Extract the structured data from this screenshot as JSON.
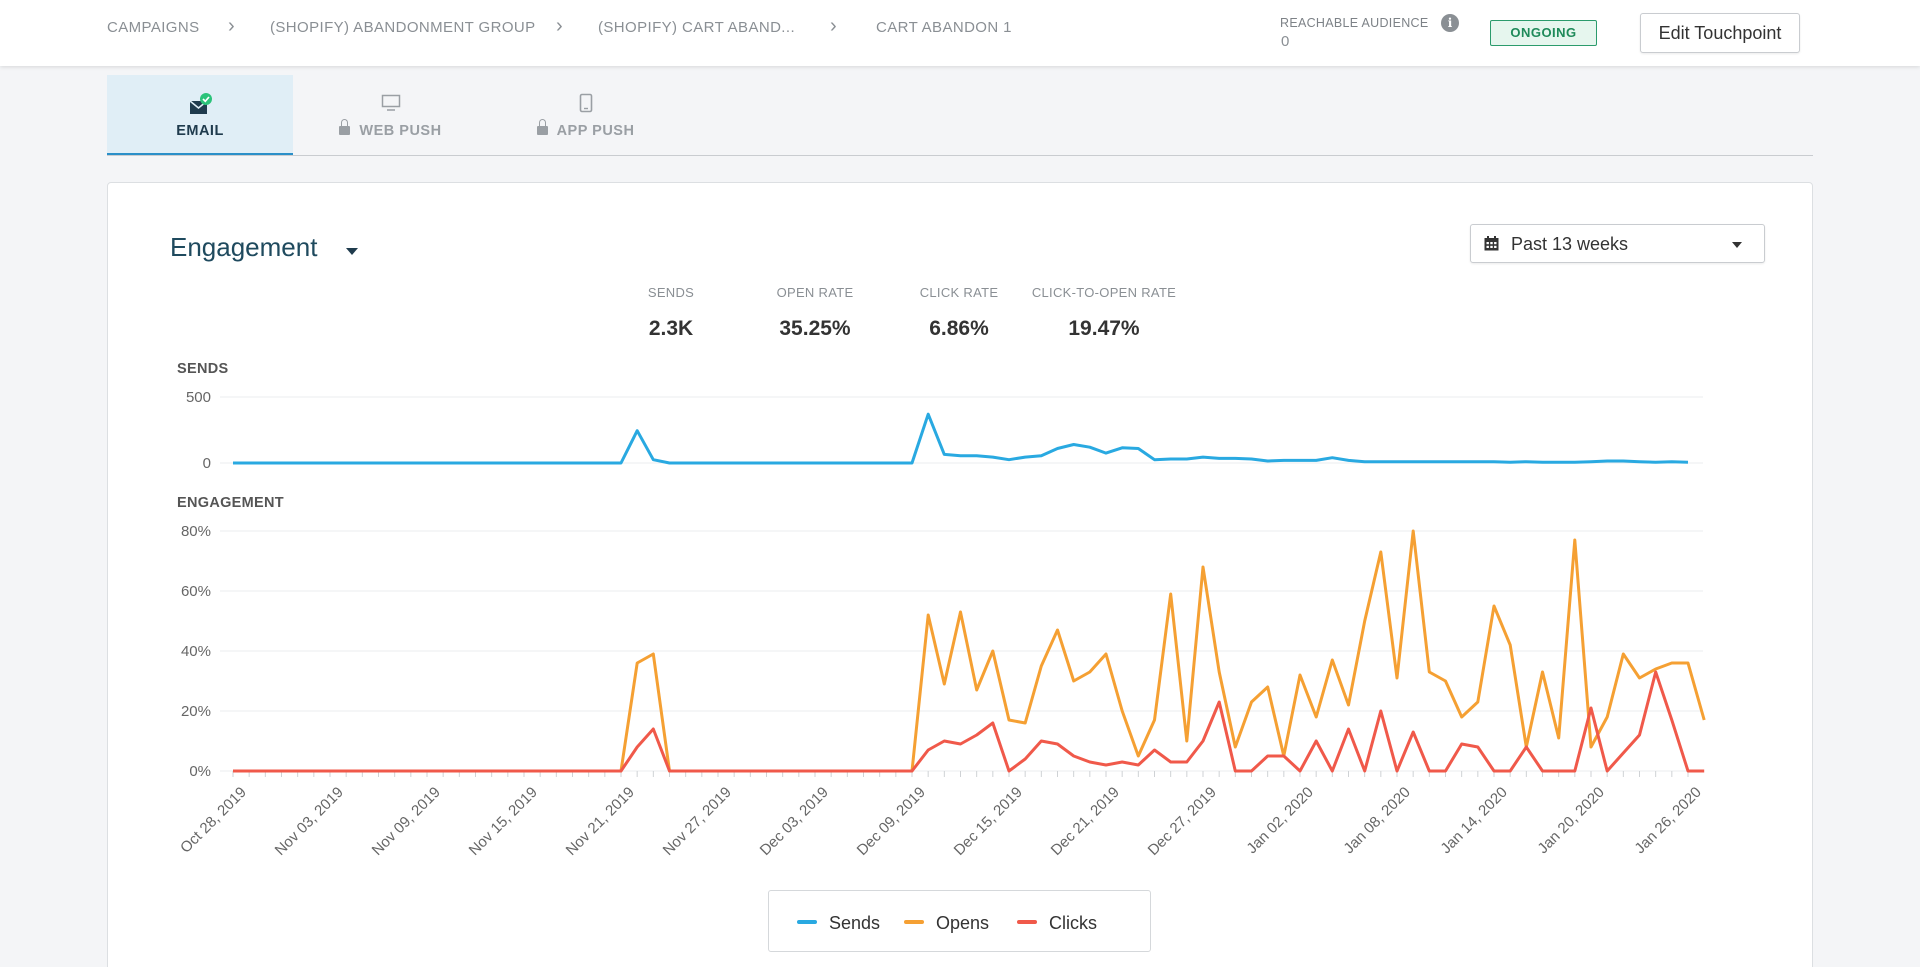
{
  "breadcrumb": {
    "items": [
      "CAMPAIGNS",
      "(SHOPIFY) ABANDONMENT GROUP",
      "(SHOPIFY) CART ABAND...",
      "CART ABANDON 1"
    ]
  },
  "header": {
    "reachable_audience_label": "REACHABLE AUDIENCE",
    "reachable_audience_value": "0",
    "status": "ONGOING",
    "edit_button": "Edit Touchpoint"
  },
  "tabs": [
    {
      "label": "EMAIL",
      "active": true,
      "locked": false,
      "icon": "email-check-icon"
    },
    {
      "label": "WEB PUSH",
      "active": false,
      "locked": true,
      "icon": "monitor-icon"
    },
    {
      "label": "APP PUSH",
      "active": false,
      "locked": true,
      "icon": "phone-icon"
    }
  ],
  "engagement": {
    "title": "Engagement",
    "range": "Past 13 weeks",
    "metrics": [
      {
        "label": "SENDS",
        "value": "2.3K"
      },
      {
        "label": "OPEN RATE",
        "value": "35.25%"
      },
      {
        "label": "CLICK RATE",
        "value": "6.86%"
      },
      {
        "label": "CLICK-TO-OPEN RATE",
        "value": "19.47%"
      }
    ],
    "sends_label": "SENDS",
    "engagement_label": "ENGAGEMENT"
  },
  "legend": {
    "items": [
      {
        "label": "Sends",
        "color": "#29a9e1"
      },
      {
        "label": "Opens",
        "color": "#f5a033"
      },
      {
        "label": "Clicks",
        "color": "#f0594a"
      }
    ]
  },
  "colors": {
    "sends": "#29a9e1",
    "opens": "#f5a033",
    "clicks": "#f0594a",
    "accent": "#2a8fc8",
    "status": "#2b9b6c"
  },
  "chart_data": [
    {
      "type": "line",
      "title": "SENDS",
      "ylim": [
        0,
        500
      ],
      "y_ticks": [
        "0",
        "500"
      ],
      "x_start": "2019-10-28",
      "x_end": "2020-01-26",
      "series": [
        {
          "name": "Sends",
          "values": [
            0,
            0,
            0,
            0,
            0,
            0,
            0,
            0,
            0,
            0,
            0,
            0,
            0,
            0,
            0,
            0,
            0,
            0,
            0,
            0,
            0,
            0,
            0,
            0,
            0,
            245,
            25,
            0,
            0,
            0,
            0,
            0,
            0,
            0,
            0,
            0,
            0,
            0,
            0,
            0,
            0,
            0,
            0,
            370,
            65,
            55,
            55,
            45,
            25,
            45,
            55,
            110,
            140,
            120,
            75,
            115,
            110,
            25,
            30,
            30,
            45,
            35,
            35,
            30,
            15,
            20,
            20,
            20,
            40,
            20,
            10,
            10,
            10,
            10,
            10,
            10,
            10,
            10,
            10,
            5,
            10,
            5,
            5,
            5,
            10,
            15,
            15,
            10,
            5,
            10,
            5
          ]
        }
      ]
    },
    {
      "type": "line",
      "title": "ENGAGEMENT",
      "ylim": [
        0,
        80
      ],
      "y_ticks": [
        "0%",
        "20%",
        "40%",
        "60%",
        "80%"
      ],
      "x_start": "2019-10-28",
      "x_end": "2020-01-26",
      "x_ticks": [
        "Oct 28, 2019",
        "Nov 03, 2019",
        "Nov 09, 2019",
        "Nov 15, 2019",
        "Nov 21, 2019",
        "Nov 27, 2019",
        "Dec 03, 2019",
        "Dec 09, 2019",
        "Dec 15, 2019",
        "Dec 21, 2019",
        "Dec 27, 2019",
        "Jan 02, 2020",
        "Jan 08, 2020",
        "Jan 14, 2020",
        "Jan 20, 2020",
        "Jan 26, 2020"
      ],
      "series": [
        {
          "name": "Opens",
          "values": [
            0,
            0,
            0,
            0,
            0,
            0,
            0,
            0,
            0,
            0,
            0,
            0,
            0,
            0,
            0,
            0,
            0,
            0,
            0,
            0,
            0,
            0,
            0,
            0,
            0,
            36,
            39,
            0,
            0,
            0,
            0,
            0,
            0,
            0,
            0,
            0,
            0,
            0,
            0,
            0,
            0,
            0,
            0,
            52,
            29,
            53,
            27,
            40,
            17,
            16,
            35,
            47,
            30,
            33,
            39,
            20,
            5,
            17,
            59,
            10,
            68,
            33,
            8,
            23,
            28,
            5,
            32,
            18,
            37,
            22,
            50,
            73,
            31,
            80,
            33,
            30,
            18,
            23,
            55,
            42,
            8,
            33,
            11,
            77,
            8,
            18,
            39,
            31,
            34,
            36,
            36,
            17
          ]
        },
        {
          "name": "Clicks",
          "values": [
            0,
            0,
            0,
            0,
            0,
            0,
            0,
            0,
            0,
            0,
            0,
            0,
            0,
            0,
            0,
            0,
            0,
            0,
            0,
            0,
            0,
            0,
            0,
            0,
            0,
            8,
            14,
            0,
            0,
            0,
            0,
            0,
            0,
            0,
            0,
            0,
            0,
            0,
            0,
            0,
            0,
            0,
            0,
            7,
            10,
            9,
            12,
            16,
            0,
            4,
            10,
            9,
            5,
            3,
            2,
            3,
            2,
            7,
            3,
            3,
            10,
            23,
            0,
            0,
            5,
            5,
            0,
            10,
            0,
            14,
            0,
            20,
            0,
            13,
            0,
            0,
            9,
            8,
            0,
            0,
            8,
            0,
            0,
            0,
            21,
            0,
            6,
            12,
            33,
            17,
            0,
            0
          ]
        }
      ]
    }
  ]
}
